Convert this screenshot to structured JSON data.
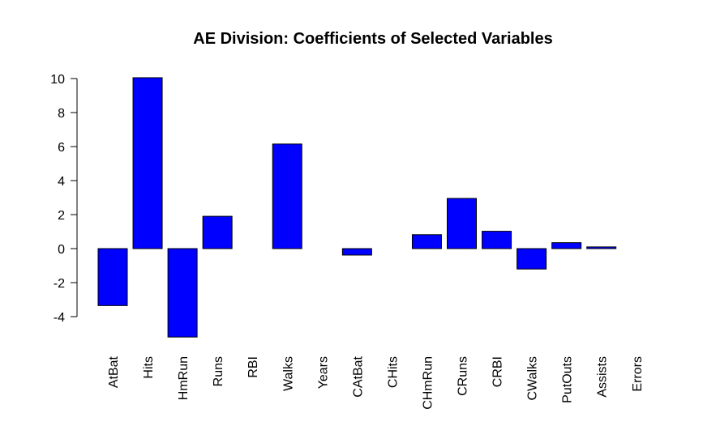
{
  "chart_data": {
    "type": "bar",
    "title": "AE Division: Coefficients of Selected Variables",
    "xlabel": "",
    "ylabel": "",
    "categories": [
      "AtBat",
      "Hits",
      "HmRun",
      "Runs",
      "RBI",
      "Walks",
      "Years",
      "CAtBat",
      "CHits",
      "CHmRun",
      "CRuns",
      "CRBI",
      "CWalks",
      "PutOuts",
      "Assists",
      "Errors"
    ],
    "values": [
      -3.35,
      10.05,
      -5.2,
      1.9,
      0.0,
      6.15,
      0.0,
      -0.38,
      0.0,
      0.82,
      2.95,
      1.02,
      -1.2,
      0.35,
      0.1,
      0.0
    ],
    "yticks": [
      "-4",
      "-2",
      "0",
      "2",
      "4",
      "6",
      "8",
      "10"
    ],
    "ylim": [
      -5.2,
      10.05
    ],
    "grid": false,
    "legend": "none",
    "bar_color": "#0000ff",
    "bar_border_color": "#000000"
  }
}
